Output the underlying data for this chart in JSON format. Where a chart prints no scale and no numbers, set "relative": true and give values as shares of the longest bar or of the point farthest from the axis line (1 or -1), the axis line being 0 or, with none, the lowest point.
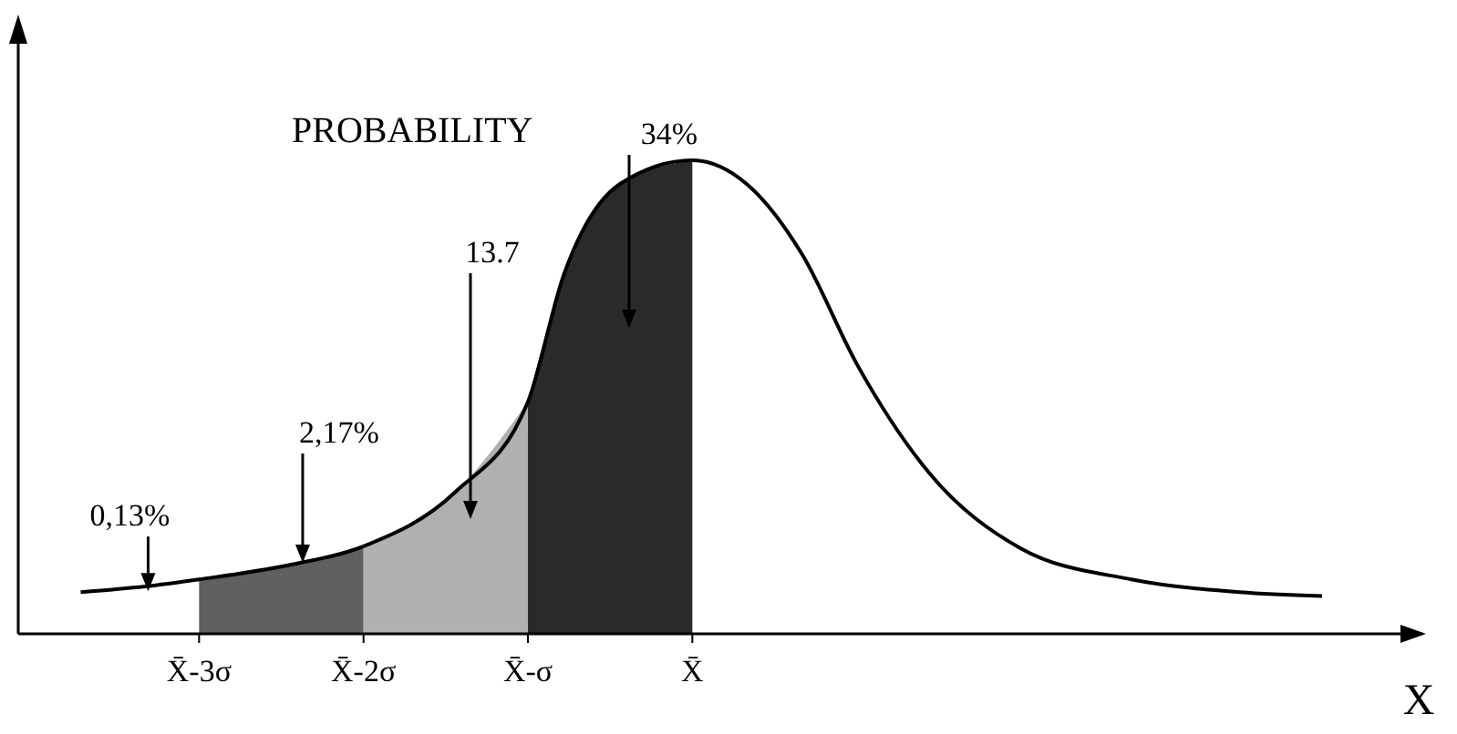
{
  "chart_data": {
    "type": "line",
    "relative": true,
    "ylabel": "PROBABILITY",
    "xlabel": "X",
    "xlim": [
      -4.1,
      4.44
    ],
    "xticks": [
      {
        "value": -3,
        "label": "X̄-3σ"
      },
      {
        "value": -2,
        "label": "X̄-2σ"
      },
      {
        "value": -1,
        "label": "X̄-σ"
      },
      {
        "value": 0,
        "label": "X̄"
      }
    ],
    "series": [
      {
        "type": "area",
        "color": "#606060",
        "x": [
          -3,
          -2.44,
          -2
        ],
        "values": [
          0.115,
          0.146,
          0.185
        ]
      },
      {
        "type": "area",
        "color": "#b0b0b0",
        "x": [
          -2,
          -1.44,
          -1
        ],
        "values": [
          0.185,
          0.3,
          0.49
        ]
      },
      {
        "type": "area",
        "color": "#2a2a2a",
        "x": [
          -1,
          -0.78,
          -0.44,
          0
        ],
        "values": [
          0.49,
          0.76,
          0.95,
          1
        ]
      },
      {
        "color": "#000000",
        "x": [
          -3.72,
          -3.33,
          -3,
          -2.44,
          -2,
          -1.44,
          -1,
          -0.78,
          -0.44,
          0,
          0.33,
          0.67,
          1,
          1.44,
          2,
          2.67,
          3.33,
          3.83
        ],
        "values": [
          0.088,
          0.1,
          0.115,
          0.146,
          0.185,
          0.3,
          0.49,
          0.76,
          0.95,
          1,
          0.95,
          0.8,
          0.57,
          0.34,
          0.18,
          0.115,
          0.088,
          0.08
        ]
      }
    ],
    "annotations": [
      {
        "text": "0,13%",
        "x": -3.31,
        "y": 0.09
      },
      {
        "text": "2,17%",
        "x": -2.37,
        "y": 0.15
      },
      "13.7",
      "34%"
    ]
  }
}
